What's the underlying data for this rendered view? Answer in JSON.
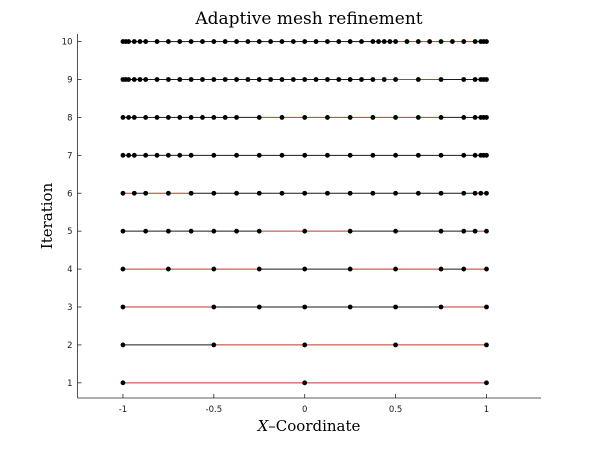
{
  "chart_data": {
    "type": "scatter",
    "title": "Adaptive mesh refinement",
    "xlabel_italic": "X",
    "xlabel_rest": "–Coordinate",
    "ylabel": "Iteration",
    "xlim": [
      -1.25,
      1.3
    ],
    "ylim": [
      0.6,
      10.2
    ],
    "xticks": [
      -1,
      -0.5,
      0,
      0.5,
      1
    ],
    "xtick_labels": [
      "-1",
      "-0.5",
      "0",
      "0.5",
      "1"
    ],
    "yticks": [
      1,
      2,
      3,
      4,
      5,
      6,
      7,
      8,
      9,
      10
    ],
    "grid": false,
    "colors": {
      "refined_segment": "#c0392b",
      "kept_segment": "#1a1a1a",
      "node": "#000000"
    },
    "levels": [
      {
        "iteration": 1,
        "nodes": [
          -1,
          0,
          1
        ],
        "refined": [
          0,
          1
        ]
      },
      {
        "iteration": 2,
        "nodes": [
          -1,
          -0.5,
          0,
          0.5,
          1
        ],
        "refined": [
          1,
          2,
          3
        ]
      },
      {
        "iteration": 3,
        "nodes": [
          -1,
          -0.5,
          -0.25,
          0,
          0.25,
          0.5,
          0.75,
          1
        ],
        "refined": [
          0,
          6
        ]
      },
      {
        "iteration": 4,
        "nodes": [
          -1,
          -0.75,
          -0.5,
          -0.25,
          0,
          0.25,
          0.5,
          0.75,
          0.875,
          1
        ],
        "refined": [
          0,
          1,
          2,
          5,
          6,
          8
        ]
      },
      {
        "iteration": 5,
        "nodes": [
          -1,
          -0.875,
          -0.75,
          -0.625,
          -0.5,
          -0.375,
          -0.25,
          0,
          0.25,
          0.5,
          0.75,
          0.875,
          0.9375,
          1
        ],
        "refined": [
          6,
          7,
          12
        ]
      },
      {
        "iteration": 6,
        "nodes": [
          -1,
          -0.9375,
          -0.875,
          -0.75,
          -0.625,
          -0.5,
          -0.375,
          -0.25,
          -0.125,
          0,
          0.125,
          0.25,
          0.375,
          0.5,
          0.625,
          0.75,
          0.875,
          0.9375,
          0.96875,
          1
        ],
        "refined": [
          0,
          2,
          3,
          17
        ]
      },
      {
        "iteration": 7,
        "nodes": [
          -1,
          -0.96875,
          -0.9375,
          -0.875,
          -0.8125,
          -0.75,
          -0.6875,
          -0.625,
          -0.5,
          -0.375,
          -0.25,
          -0.125,
          0,
          0.125,
          0.25,
          0.375,
          0.5,
          0.625,
          0.75,
          0.875,
          0.9375,
          0.96875,
          0.984375,
          1
        ],
        "refined": []
      },
      {
        "iteration": 8,
        "nodes": [
          -1,
          -0.96875,
          -0.9375,
          -0.875,
          -0.8125,
          -0.75,
          -0.6875,
          -0.625,
          -0.5625,
          -0.5,
          -0.4375,
          -0.375,
          -0.25,
          -0.125,
          0,
          0.125,
          0.25,
          0.375,
          0.5,
          0.625,
          0.75,
          0.875,
          0.9375,
          0.96875,
          0.984375,
          1
        ],
        "refined": [
          12,
          13,
          14,
          15,
          16,
          17,
          18,
          19
        ]
      },
      {
        "iteration": 9,
        "nodes": [
          -1,
          -0.984375,
          -0.96875,
          -0.9375,
          -0.90625,
          -0.875,
          -0.8125,
          -0.75,
          -0.6875,
          -0.625,
          -0.5625,
          -0.5,
          -0.4375,
          -0.375,
          -0.3125,
          -0.25,
          -0.1875,
          -0.125,
          -0.0625,
          0,
          0.0625,
          0.125,
          0.1875,
          0.25,
          0.3125,
          0.375,
          0.4375,
          0.5,
          0.625,
          0.75,
          0.875,
          0.9375,
          0.96875,
          0.984375,
          1
        ],
        "refined": [
          25,
          26,
          27,
          28
        ]
      },
      {
        "iteration": 10,
        "nodes": [
          -1,
          -0.984375,
          -0.96875,
          -0.9375,
          -0.90625,
          -0.875,
          -0.8125,
          -0.75,
          -0.6875,
          -0.625,
          -0.5625,
          -0.5,
          -0.4375,
          -0.375,
          -0.3125,
          -0.25,
          -0.1875,
          -0.125,
          -0.0625,
          0,
          0.0625,
          0.125,
          0.1875,
          0.25,
          0.3125,
          0.375,
          0.40625,
          0.4375,
          0.46875,
          0.5,
          0.5625,
          0.625,
          0.6875,
          0.75,
          0.8125,
          0.875,
          0.9375,
          0.96875,
          0.984375,
          1
        ],
        "refined": [
          29,
          30,
          31,
          32,
          33,
          34,
          35
        ]
      }
    ]
  }
}
